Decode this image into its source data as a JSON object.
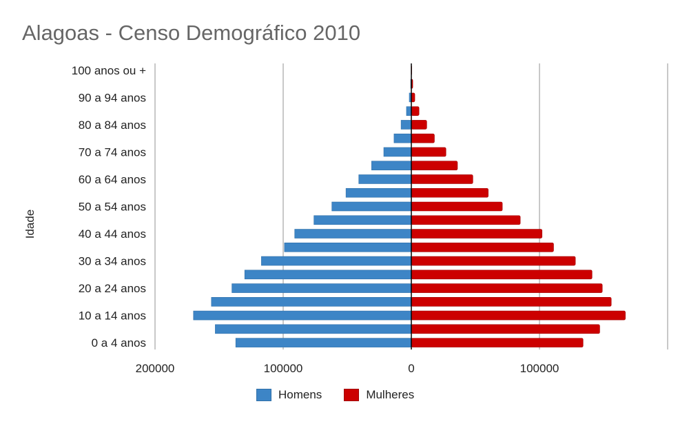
{
  "chart_data": {
    "type": "bar",
    "orientation": "horizontal",
    "title": "Alagoas - Censo Demográfico 2010",
    "ylabel": "Idade",
    "xlabel": "",
    "tick_labels": [
      "0 a 4 anos",
      "10 a 14 anos",
      "20 a 24 anos",
      "30 a 34 anos",
      "40 a 44 anos",
      "50 a 54 anos",
      "60 a 64 anos",
      "70 a 74 anos",
      "80 a 84 anos",
      "90 a 94 anos",
      "100 anos ou +"
    ],
    "x_ticks": [
      "200000",
      "100000",
      "0",
      "100000"
    ],
    "xlim": [
      -200000,
      200000
    ],
    "grid": true,
    "legend_position": "bottom",
    "series": [
      {
        "name": "Homens",
        "color": "#3d85c6",
        "side": "left",
        "values": [
          137000,
          153000,
          170000,
          156000,
          140000,
          130000,
          117000,
          99000,
          91000,
          76000,
          62000,
          51000,
          41000,
          31000,
          21500,
          13500,
          8000,
          3800,
          1600,
          500,
          100
        ]
      },
      {
        "name": "Mulheres",
        "color": "#cc0000",
        "side": "right",
        "values": [
          134000,
          147000,
          167000,
          156000,
          149000,
          141000,
          128000,
          111000,
          102000,
          85000,
          71000,
          60000,
          48000,
          36000,
          27000,
          18000,
          12000,
          6000,
          2700,
          1100,
          300
        ]
      }
    ]
  }
}
